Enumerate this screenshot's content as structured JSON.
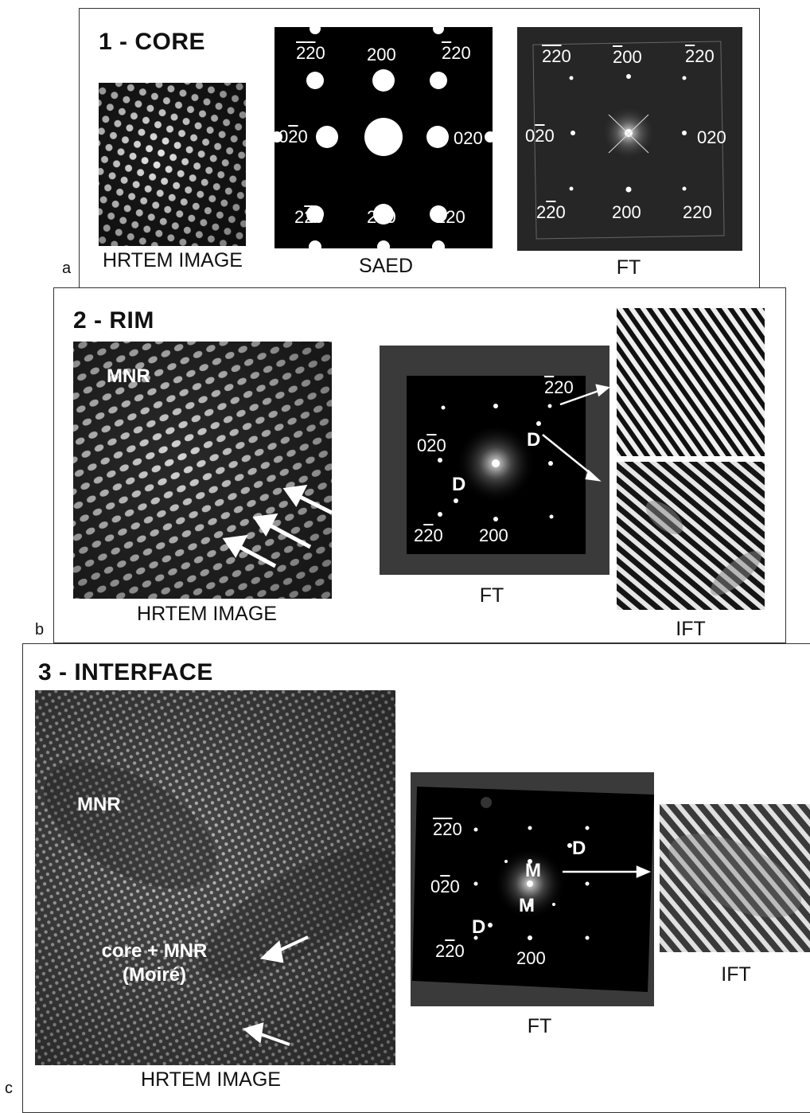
{
  "panel_a": {
    "letter": "a",
    "title": "1 - CORE",
    "hrtem_caption": "HRTEM IMAGE",
    "saed_caption": "SAED",
    "ft_caption": "FT",
    "saed_labels": {
      "tl_a": "2",
      "tl_b": "2",
      "tl_c": "0",
      "tc": "200",
      "tr_a": "2",
      "tr_b": "20",
      "ml_a": "0",
      "ml_b": "2",
      "ml_c": "0",
      "mr": "020",
      "bl_a": "2",
      "bl_b": "2",
      "bl_c": "0",
      "bc": "200",
      "br": "220"
    },
    "ft_labels": {
      "tl_a": "2",
      "tl_b": "2",
      "tl_c": "0",
      "tc_a": "2",
      "tc_b": "00",
      "tr_a": "2",
      "tr_b": "20",
      "ml_a": "0",
      "ml_b": "2",
      "ml_c": "0",
      "mr": "020",
      "bl_a": "2",
      "bl_b": "2",
      "bl_c": "0",
      "bc": "200",
      "br": "220"
    }
  },
  "panel_b": {
    "letter": "b",
    "title": "2 - RIM",
    "hrtem_caption": "HRTEM IMAGE",
    "ft_caption": "FT",
    "ift_caption": "IFT",
    "mnr_label": "MNR",
    "ft_labels": {
      "tr_a": "2",
      "tr_b": "20",
      "d1": "D",
      "ml_a": "0",
      "ml_b": "2",
      "ml_c": "0",
      "d2": "D",
      "bl_a": "2",
      "bl_b": "2",
      "bl_c": "0",
      "bc": "200"
    }
  },
  "panel_c": {
    "letter": "c",
    "title": "3 - INTERFACE",
    "hrtem_caption": "HRTEM IMAGE",
    "ft_caption": "FT",
    "ift_caption": "IFT",
    "mnr_label": "MNR",
    "moire_line1": "core + MNR",
    "moire_line2": "(Moiré)",
    "ft_labels": {
      "tl_a": "2",
      "tl_b": "2",
      "tl_c": "0",
      "d1": "D",
      "m1": "M",
      "ml_a": "0",
      "ml_b": "2",
      "ml_c": "0",
      "m2": "M",
      "d2": "D",
      "bl_a": "2",
      "bl_b": "2",
      "bl_c": "0",
      "bc": "200"
    }
  },
  "colors": {
    "frame": "#333333",
    "ft_background": "#3a3a3a",
    "ft_inner": "#000000"
  }
}
